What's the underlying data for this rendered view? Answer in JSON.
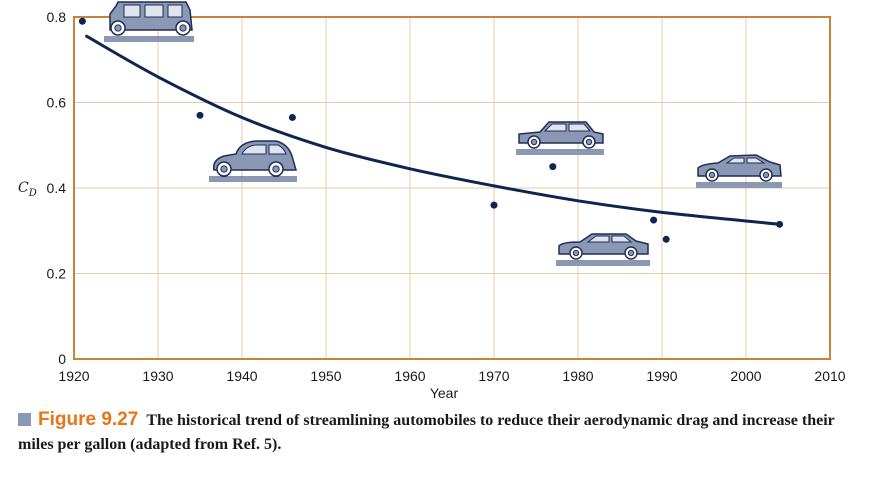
{
  "chart_data": {
    "type": "scatter",
    "title": "",
    "xlabel": "Year",
    "ylabel": "C",
    "ylabel_subscript": "D",
    "xlim": [
      1920,
      2010
    ],
    "ylim": [
      0,
      0.8
    ],
    "x_ticks": [
      "1920",
      "1930",
      "1940",
      "1950",
      "1960",
      "1970",
      "1980",
      "1990",
      "2000",
      "2010"
    ],
    "y_ticks": [
      "0",
      "0.2",
      "0.4",
      "0.6",
      "0.8"
    ],
    "grid": true,
    "points": [
      {
        "x": 1921,
        "y": 0.79
      },
      {
        "x": 1935,
        "y": 0.57
      },
      {
        "x": 1946,
        "y": 0.565
      },
      {
        "x": 1970,
        "y": 0.36
      },
      {
        "x": 1977,
        "y": 0.45
      },
      {
        "x": 1989,
        "y": 0.325
      },
      {
        "x": 1990.5,
        "y": 0.28
      },
      {
        "x": 2004,
        "y": 0.315
      }
    ],
    "trend_curve": [
      {
        "x": 1921.5,
        "y": 0.755
      },
      {
        "x": 1930,
        "y": 0.66
      },
      {
        "x": 1940,
        "y": 0.565
      },
      {
        "x": 1950,
        "y": 0.495
      },
      {
        "x": 1960,
        "y": 0.445
      },
      {
        "x": 1970,
        "y": 0.405
      },
      {
        "x": 1980,
        "y": 0.37
      },
      {
        "x": 1990,
        "y": 0.343
      },
      {
        "x": 2004,
        "y": 0.315
      }
    ],
    "colors": {
      "frame": "#c8833a",
      "grid": "#e8c9a5",
      "curve": "#0d2550",
      "point": "#0d2550",
      "car_body": "#8a97b5",
      "car_outline": "#1f2f55",
      "ground": "#8a97b5"
    },
    "car_illustrations": [
      "car-1920s-icon",
      "car-1940s-icon",
      "car-1970s-icon",
      "car-1980s-icon",
      "car-2000s-icon"
    ]
  },
  "caption": {
    "figure_label": "Figure 9.27",
    "text": "The historical trend of streamlining automobiles to reduce their aerodynamic drag and increase their miles per gallon (adapted from Ref. 5)."
  }
}
